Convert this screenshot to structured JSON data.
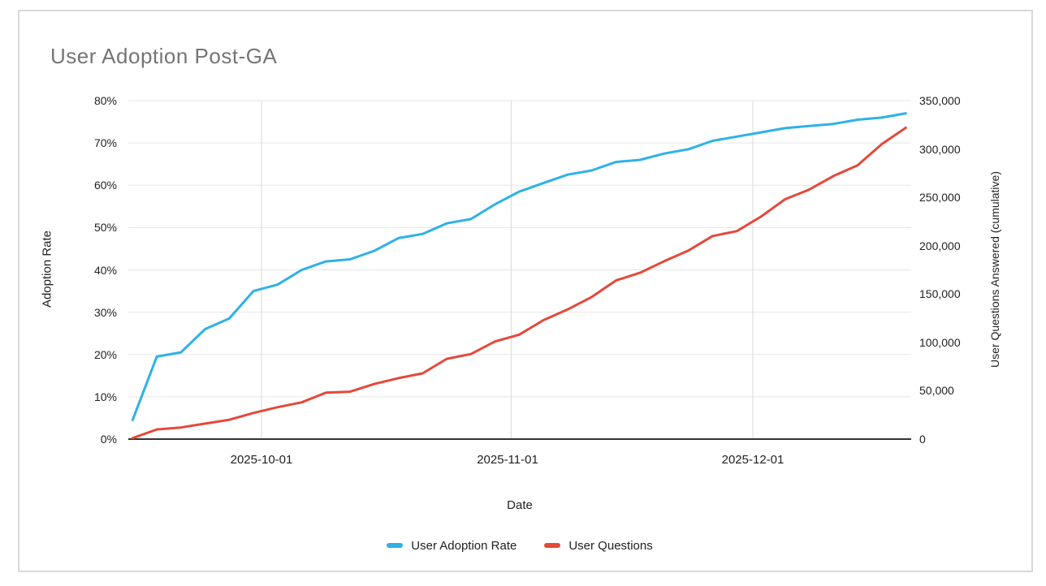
{
  "card": {
    "title": "User Adoption Post-GA"
  },
  "colors": {
    "adoption_line": "#2eb1e7",
    "questions_line": "#e3493b",
    "gridline": "#e6e6e6",
    "vertical_gridline": "#d9d9d9",
    "axis_line": "#333333",
    "title_text": "#757575",
    "tick_text": "#212121"
  },
  "chart_data": {
    "type": "line",
    "title": "User Adoption Post-GA",
    "xlabel": "Date",
    "grid": true,
    "legend_position": "bottom",
    "x_tick_labels": [
      "2025-10-01",
      "2025-11-01",
      "2025-12-01"
    ],
    "left_axis": {
      "label": "Adoption Rate",
      "min": 0,
      "max": 80,
      "unit": "%",
      "ticks": [
        "80%",
        "70%",
        "60%",
        "50%",
        "40%",
        "30%",
        "20%",
        "10%",
        "0%"
      ]
    },
    "right_axis": {
      "label": "User Questions Answered (cumulative)",
      "min": 0,
      "max": 350000,
      "ticks": [
        "350,000",
        "300,000",
        "250,000",
        "200,000",
        "150,000",
        "100,000",
        "50,000",
        "0"
      ]
    },
    "x": [
      "2025-09-15",
      "2025-09-18",
      "2025-09-21",
      "2025-09-24",
      "2025-09-27",
      "2025-09-30",
      "2025-10-03",
      "2025-10-06",
      "2025-10-09",
      "2025-10-12",
      "2025-10-15",
      "2025-10-18",
      "2025-10-21",
      "2025-10-24",
      "2025-10-27",
      "2025-10-30",
      "2025-11-02",
      "2025-11-05",
      "2025-11-08",
      "2025-11-11",
      "2025-11-14",
      "2025-11-17",
      "2025-11-20",
      "2025-11-23",
      "2025-11-26",
      "2025-11-29",
      "2025-12-02",
      "2025-12-05",
      "2025-12-08",
      "2025-12-11",
      "2025-12-14",
      "2025-12-17",
      "2025-12-20"
    ],
    "series": [
      {
        "name": "User Adoption Rate",
        "axis": "left",
        "color": "#2eb1e7",
        "values": [
          4.5,
          19.5,
          20.5,
          26,
          28.5,
          35,
          36.5,
          40,
          42,
          42.5,
          44.5,
          47.5,
          48.5,
          51,
          52,
          55.5,
          58.5,
          60.5,
          62.5,
          63.5,
          65.5,
          66,
          67.5,
          68.5,
          70.5,
          71.5,
          72.5,
          73.5,
          74,
          74.5,
          75.5,
          76,
          77
        ]
      },
      {
        "name": "User Questions",
        "axis": "right",
        "color": "#e3493b",
        "values": [
          1000,
          10000,
          12000,
          16000,
          20000,
          27000,
          33000,
          38000,
          48000,
          49000,
          57000,
          63000,
          68000,
          83000,
          88000,
          101000,
          108000,
          123000,
          134000,
          147000,
          164000,
          172000,
          184000,
          195000,
          210000,
          215000,
          230000,
          248000,
          258000,
          272000,
          283000,
          305000,
          322000
        ]
      }
    ]
  }
}
